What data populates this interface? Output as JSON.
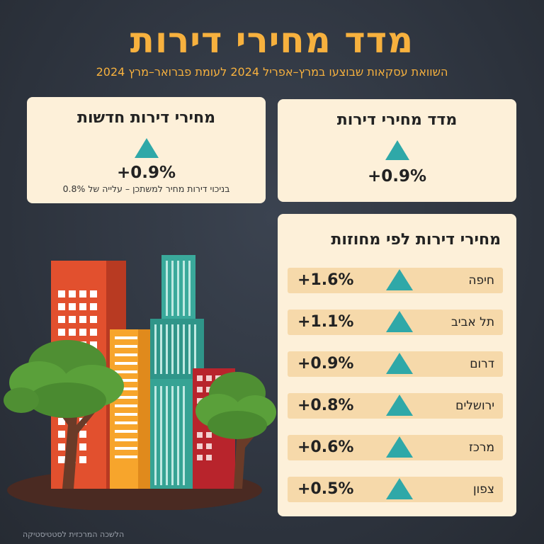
{
  "title": "מדד מחירי דירות",
  "subtitle": "השוואת עסקאות שבוצעו במרץ–אפריל 2024 לעומת פברואר–מרץ 2024",
  "cards": {
    "new_apartments": {
      "title": "מחירי דירות חדשות",
      "value": "+0.9%",
      "note": "בניכוי דירות מחיר למשתכן – עלייה של 0.8%",
      "trend_icon": "up-triangle-icon"
    },
    "index": {
      "title": "מדד מחירי דירות",
      "value": "+0.9%",
      "trend_icon": "up-triangle-icon"
    }
  },
  "districts": {
    "title": "מחירי דירות לפי מחוזות",
    "rows": [
      {
        "name": "חיפה",
        "value": "+1.6%"
      },
      {
        "name": "תל אביב",
        "value": "+1.1%"
      },
      {
        "name": "דרום",
        "value": "+0.9%"
      },
      {
        "name": "ירושלים",
        "value": "+0.8%"
      },
      {
        "name": "מרכז",
        "value": "+0.6%"
      },
      {
        "name": "צפון",
        "value": "+0.5%"
      }
    ]
  },
  "footer": "הלשכה המרכזית לסטטיסטיקה",
  "colors": {
    "accent": "#f7b13e",
    "teal": "#2fa8a8",
    "card": "#fdf0d9",
    "row": "#f6d9aa",
    "background": "#2c323c"
  }
}
